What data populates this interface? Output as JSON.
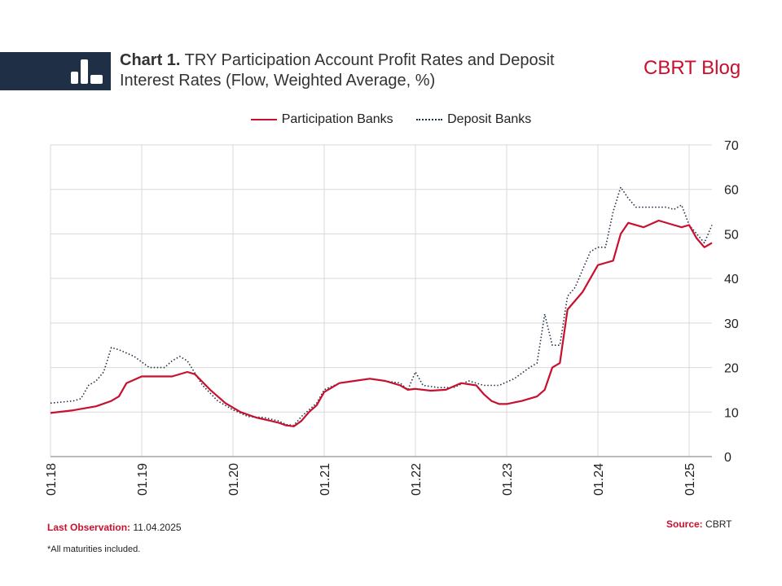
{
  "header": {
    "title_bold": "Chart 1.",
    "title_line1": "TRY Participation Account Profit Rates and Deposit",
    "title_line2": "Interest Rates (Flow, Weighted Average, %)",
    "brand": "CBRT Blog"
  },
  "legend": {
    "items": [
      "Participation Banks",
      "Deposit Banks"
    ]
  },
  "footer": {
    "last_obs_label": "Last Observation:",
    "last_obs_value": "11.04.2025",
    "source_label": "Source:",
    "source_value": "CBRT",
    "note": "*All maturities included."
  },
  "colors": {
    "participation": "#c8102e",
    "deposit": "#1f2f45",
    "grid": "#d9d9d9"
  },
  "chart_data": {
    "type": "line",
    "title": "TRY Participation Account Profit Rates and Deposit Interest Rates (Flow, Weighted Average, %)",
    "xlabel": "",
    "ylabel": "",
    "ylim": [
      0,
      70
    ],
    "yticks": [
      0,
      10,
      20,
      30,
      40,
      50,
      60,
      70
    ],
    "y_axis_side": "right",
    "x_range": [
      "2018-01",
      "2025-04"
    ],
    "xticks": [
      "01.18",
      "01.19",
      "01.20",
      "01.21",
      "01.22",
      "01.23",
      "01.24",
      "01.25"
    ],
    "grid": true,
    "legend_position": "top-center",
    "series": [
      {
        "name": "Participation Banks",
        "style": "solid",
        "x": [
          "2018-01",
          "2018-04",
          "2018-07",
          "2018-09",
          "2018-10",
          "2018-11",
          "2019-01",
          "2019-03",
          "2019-05",
          "2019-07",
          "2019-08",
          "2019-10",
          "2019-12",
          "2020-02",
          "2020-04",
          "2020-06",
          "2020-07",
          "2020-08",
          "2020-09",
          "2020-10",
          "2020-11",
          "2020-12",
          "2021-01",
          "2021-03",
          "2021-05",
          "2021-07",
          "2021-09",
          "2021-11",
          "2021-12",
          "2022-01",
          "2022-03",
          "2022-05",
          "2022-07",
          "2022-09",
          "2022-10",
          "2022-11",
          "2022-12",
          "2023-01",
          "2023-03",
          "2023-05",
          "2023-06",
          "2023-07",
          "2023-08",
          "2023-09",
          "2023-10",
          "2023-11",
          "2023-12",
          "2024-01",
          "2024-02",
          "2024-03",
          "2024-04",
          "2024-05",
          "2024-07",
          "2024-09",
          "2024-11",
          "2024-12",
          "2025-01",
          "2025-02",
          "2025-03",
          "2025-04"
        ],
        "values": [
          9.8,
          10.4,
          11.3,
          12.5,
          13.5,
          16.5,
          18.0,
          18.0,
          18.0,
          19.0,
          18.5,
          15.0,
          12.0,
          10.0,
          8.8,
          8.0,
          7.6,
          7.0,
          6.8,
          8.0,
          10.0,
          11.5,
          14.5,
          16.5,
          17.0,
          17.5,
          17.0,
          16.0,
          15.0,
          15.2,
          14.8,
          15.0,
          16.5,
          16.0,
          14.0,
          12.5,
          11.8,
          11.8,
          12.5,
          13.5,
          15.0,
          20.0,
          21.0,
          33.0,
          35.0,
          37.0,
          40.0,
          43.0,
          43.5,
          44.0,
          50.0,
          52.5,
          51.5,
          53.0,
          52.0,
          51.5,
          52.0,
          49.0,
          47.0,
          48.0
        ]
      },
      {
        "name": "Deposit Banks",
        "style": "dotted",
        "x": [
          "2018-01",
          "2018-04",
          "2018-05",
          "2018-06",
          "2018-07",
          "2018-08",
          "2018-09",
          "2018-10",
          "2018-12",
          "2019-02",
          "2019-04",
          "2019-05",
          "2019-06",
          "2019-07",
          "2019-09",
          "2019-11",
          "2020-01",
          "2020-03",
          "2020-05",
          "2020-07",
          "2020-08",
          "2020-09",
          "2020-10",
          "2020-11",
          "2020-12",
          "2021-01",
          "2021-03",
          "2021-05",
          "2021-07",
          "2021-09",
          "2021-11",
          "2021-12",
          "2022-01",
          "2022-02",
          "2022-04",
          "2022-06",
          "2022-08",
          "2022-10",
          "2022-12",
          "2023-02",
          "2023-04",
          "2023-05",
          "2023-06",
          "2023-07",
          "2023-08",
          "2023-09",
          "2023-10",
          "2023-11",
          "2023-12",
          "2024-01",
          "2024-02",
          "2024-03",
          "2024-04",
          "2024-05",
          "2024-06",
          "2024-08",
          "2024-10",
          "2024-11",
          "2024-12",
          "2025-01",
          "2025-02",
          "2025-03",
          "2025-04"
        ],
        "values": [
          12.0,
          12.5,
          13.0,
          16.0,
          17.0,
          19.0,
          24.5,
          24.0,
          22.5,
          20.0,
          20.0,
          21.5,
          22.5,
          21.5,
          16.0,
          12.5,
          10.5,
          9.0,
          8.8,
          8.0,
          7.2,
          7.0,
          9.0,
          10.5,
          12.0,
          15.0,
          16.5,
          17.0,
          17.5,
          17.0,
          16.5,
          15.0,
          19.0,
          16.0,
          15.5,
          15.5,
          17.0,
          16.0,
          16.0,
          17.5,
          20.0,
          21.0,
          32.0,
          25.0,
          25.0,
          36.0,
          38.0,
          42.0,
          46.0,
          47.0,
          47.0,
          55.0,
          60.5,
          58.0,
          56.0,
          56.0,
          56.0,
          55.5,
          56.5,
          52.0,
          50.0,
          48.0,
          52.0
        ]
      }
    ]
  }
}
